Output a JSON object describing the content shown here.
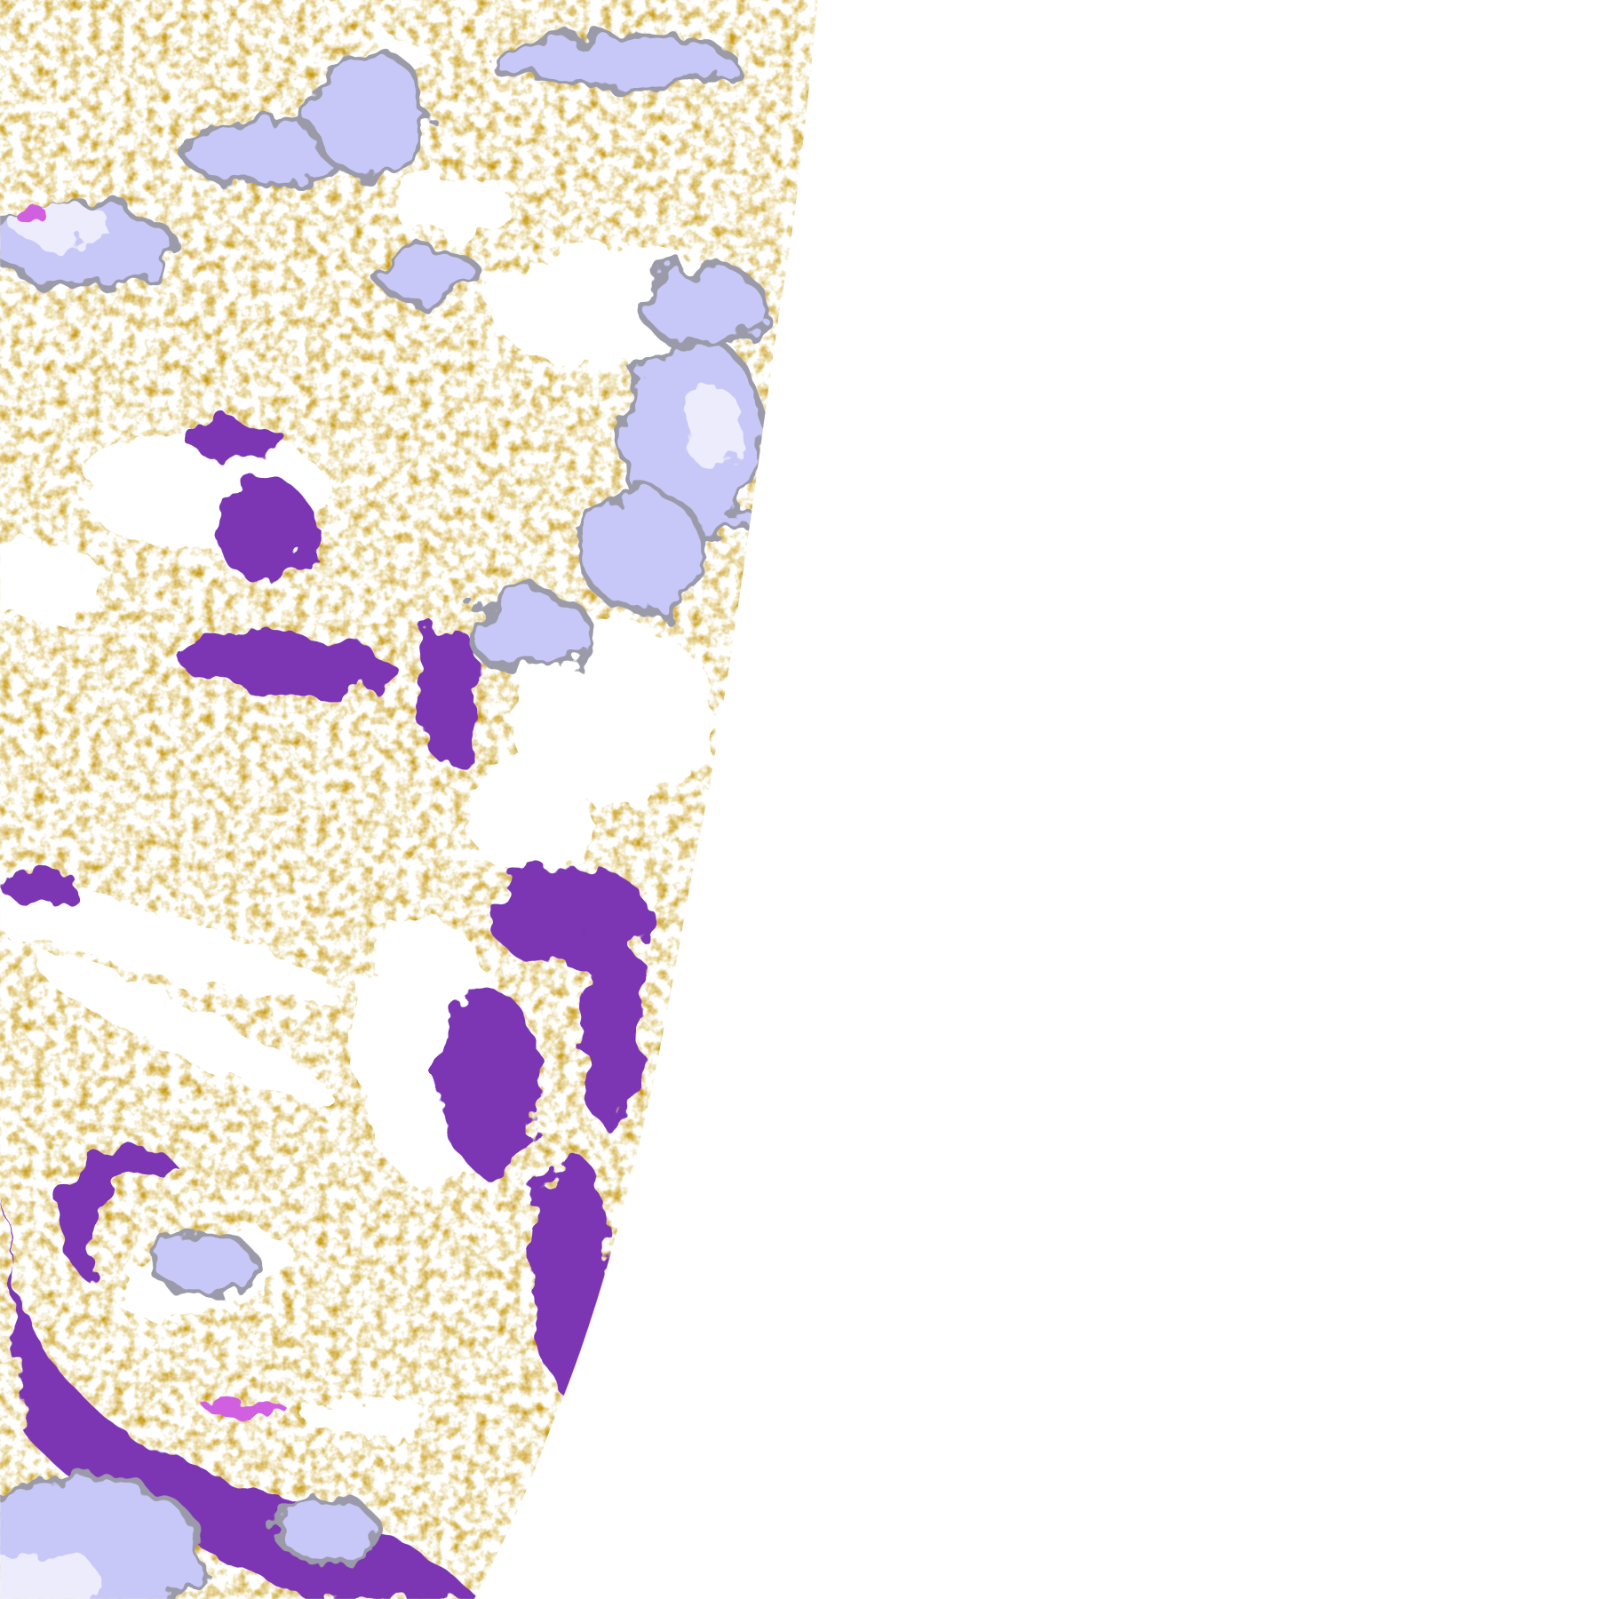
{
  "colors": {
    "background": "#ffffff",
    "class_gold": "#c89a10",
    "class_purple": "#7b35b3",
    "class_lavender": "#c8c8f8",
    "class_pale": "#ececfc",
    "class_gray": "#9a9aa8",
    "class_magenta": "#d060e0"
  }
}
